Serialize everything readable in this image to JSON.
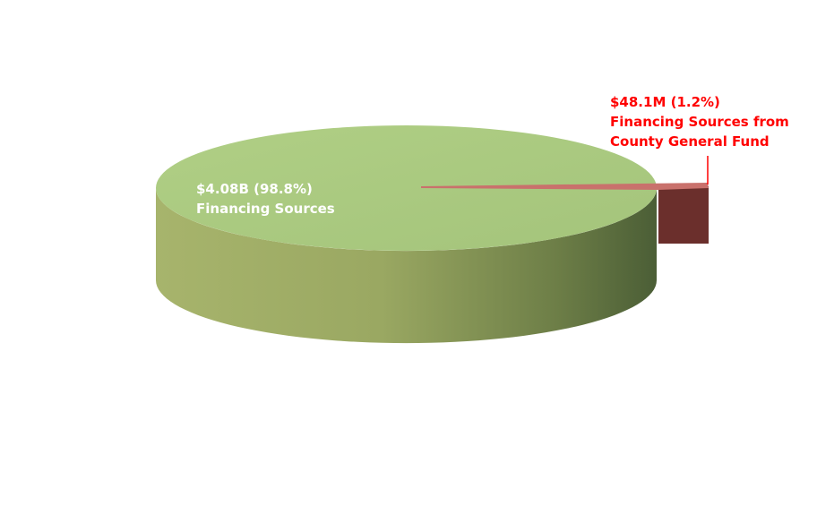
{
  "chart_data": {
    "type": "pie",
    "style": "3d-exploded",
    "slices": [
      {
        "label": "Financing Sources",
        "value_text": "$4.08B",
        "value": 4080,
        "percent": 98.8,
        "color": "#a9c97f",
        "label_color": "#ffffff"
      },
      {
        "label": "Financing Sources from County General Fund",
        "value_text": "$48.1M",
        "value": 48.1,
        "percent": 1.2,
        "color": "#c0504d",
        "label_color": "#ff0000"
      }
    ],
    "legend": "none"
  },
  "labels": {
    "main_value": "$4.08B (98.8%)",
    "main_name": "Financing Sources",
    "small_value": "$48.1M (1.2%)",
    "small_name_line1": "Financing Sources from",
    "small_name_line2": "County General Fund"
  }
}
